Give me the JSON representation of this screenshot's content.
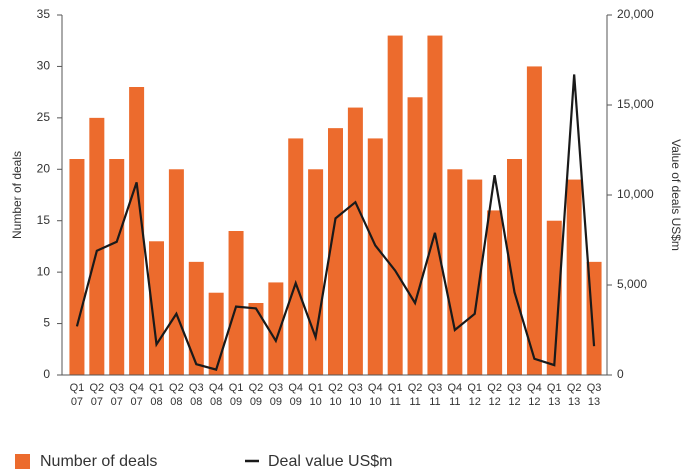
{
  "chart_data": {
    "type": "bar-line",
    "categories": [
      "Q1 07",
      "Q2 07",
      "Q3 07",
      "Q4 07",
      "Q1 08",
      "Q2 08",
      "Q3 08",
      "Q4 08",
      "Q1 09",
      "Q2 09",
      "Q3 09",
      "Q4 09",
      "Q1 10",
      "Q2 10",
      "Q3 10",
      "Q4 10",
      "Q1 11",
      "Q2 11",
      "Q3 11",
      "Q4 11",
      "Q1 12",
      "Q2 12",
      "Q3 12",
      "Q4 12",
      "Q1 13",
      "Q2 13",
      "Q3 13"
    ],
    "series": [
      {
        "name": "Number of deals",
        "type": "bar",
        "color": "#ec6b2d",
        "axis": "y",
        "values": [
          21,
          25,
          21,
          28,
          13,
          20,
          11,
          8,
          14,
          7,
          9,
          23,
          20,
          24,
          26,
          23,
          33,
          27,
          33,
          20,
          19,
          16,
          21,
          30,
          15,
          19,
          11
        ]
      },
      {
        "name": "Deal value US$m",
        "type": "line",
        "color": "#1a1a1a",
        "axis": "y2",
        "values": [
          2700,
          6900,
          7400,
          10700,
          1700,
          3400,
          600,
          300,
          3800,
          3700,
          1900,
          5100,
          2100,
          8700,
          9600,
          7200,
          5800,
          4000,
          7900,
          2500,
          3400,
          11100,
          4600,
          900,
          550,
          16700,
          1600
        ]
      }
    ],
    "ylabel": "Number of deals",
    "y2label": "Value of deals US$m",
    "ylim": [
      0,
      35
    ],
    "yticks": [
      0,
      5,
      10,
      15,
      20,
      25,
      30,
      35
    ],
    "y2lim": [
      0,
      20000
    ],
    "y2ticks": [
      0,
      {
        "value": 5000,
        "label": "5,000"
      },
      {
        "value": 10000,
        "label": "10,000"
      },
      {
        "value": 15000,
        "label": "15,000"
      },
      {
        "value": 20000,
        "label": "20,000"
      }
    ]
  }
}
